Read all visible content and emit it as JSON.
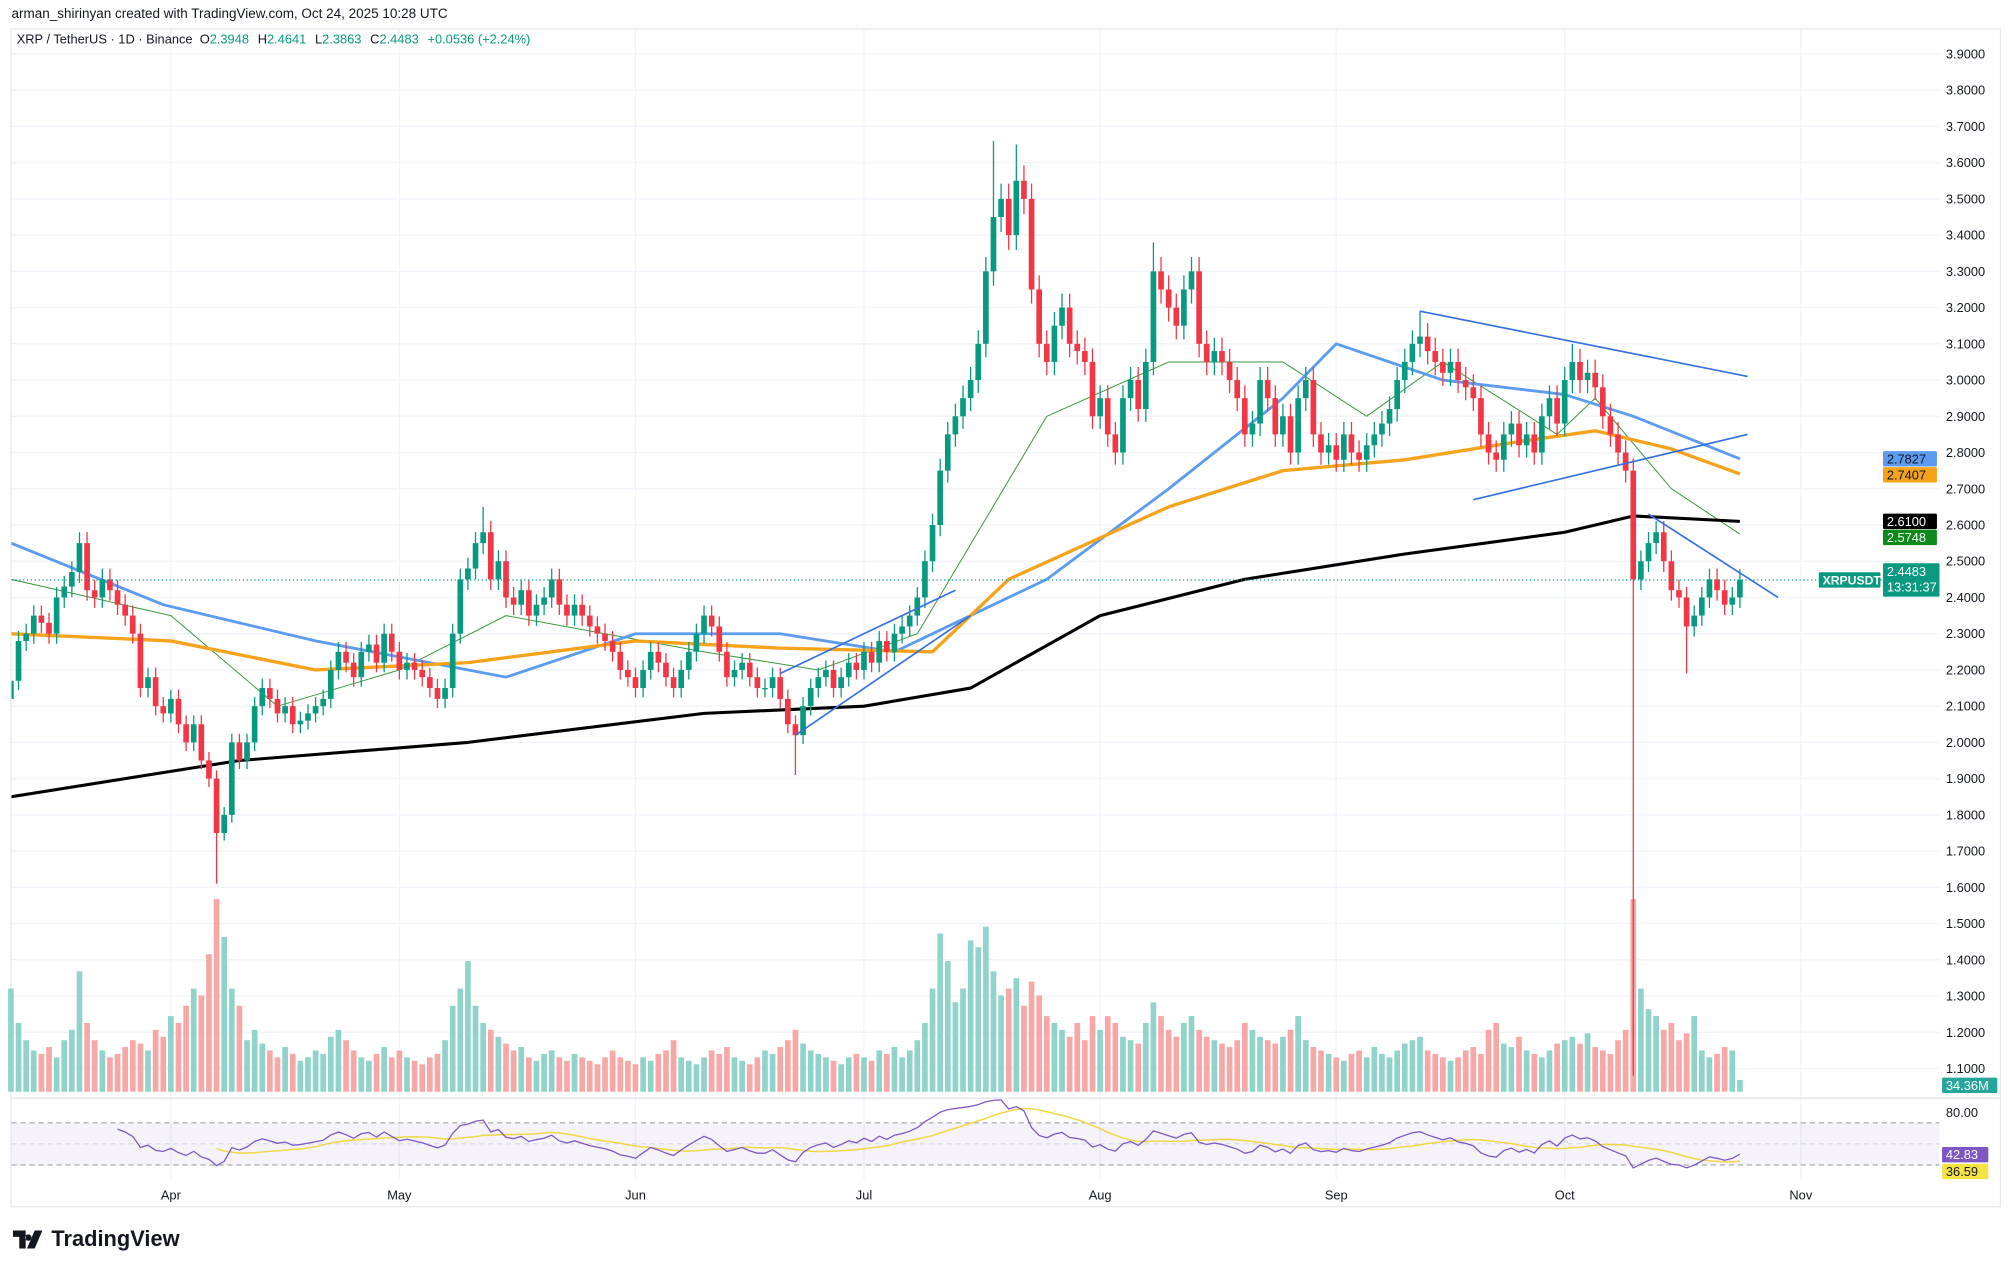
{
  "header": {
    "credit": "arman_shirinyan created with TradingView.com, Oct 24, 2025 10:28 UTC"
  },
  "legend": {
    "symbol": "XRP / TetherUS · 1D · Binance",
    "open_label": "O",
    "open": "2.3948",
    "high_label": "H",
    "high": "2.4641",
    "low_label": "L",
    "low": "2.3863",
    "close_label": "C",
    "close": "2.4483",
    "change": "+0.0536 (+2.24%)"
  },
  "logo": {
    "text": "TradingView"
  },
  "colors": {
    "up": "#089981",
    "down": "#f23645",
    "vol_up": "#8fd3cb",
    "vol_down": "#f7a8a6",
    "ma_green": "#3d9a40",
    "ma_blue": "#5b9bf0",
    "ma_orange": "#f7a21b",
    "ma_black": "#000000",
    "trendline": "#3470e0",
    "rsi": "#7e57c2",
    "rsi_ma": "#f0d84a"
  },
  "chart_data": {
    "type": "candlestick",
    "start_date": "2025-03-11",
    "close": [
      2.17,
      2.28,
      2.3,
      2.35,
      2.33,
      2.3,
      2.4,
      2.43,
      2.47,
      2.55,
      2.42,
      2.4,
      2.45,
      2.42,
      2.38,
      2.35,
      2.3,
      2.15,
      2.18,
      2.1,
      2.08,
      2.12,
      2.05,
      2.0,
      2.05,
      1.95,
      1.9,
      1.75,
      1.8,
      2.0,
      1.95,
      2.0,
      2.1,
      2.15,
      2.12,
      2.08,
      2.1,
      2.05,
      2.06,
      2.08,
      2.1,
      2.12,
      2.2,
      2.25,
      2.22,
      2.18,
      2.25,
      2.27,
      2.22,
      2.3,
      2.25,
      2.2,
      2.22,
      2.2,
      2.18,
      2.15,
      2.12,
      2.15,
      2.3,
      2.45,
      2.48,
      2.55,
      2.58,
      2.45,
      2.5,
      2.4,
      2.38,
      2.42,
      2.35,
      2.38,
      2.4,
      2.45,
      2.38,
      2.35,
      2.38,
      2.35,
      2.32,
      2.3,
      2.28,
      2.25,
      2.2,
      2.18,
      2.15,
      2.2,
      2.25,
      2.22,
      2.18,
      2.15,
      2.2,
      2.25,
      2.3,
      2.35,
      2.32,
      2.25,
      2.18,
      2.2,
      2.22,
      2.18,
      2.15,
      2.15,
      2.18,
      2.12,
      2.05,
      2.02,
      2.1,
      2.15,
      2.18,
      2.2,
      2.15,
      2.18,
      2.22,
      2.2,
      2.25,
      2.22,
      2.28,
      2.25,
      2.3,
      2.32,
      2.35,
      2.4,
      2.5,
      2.6,
      2.75,
      2.85,
      2.9,
      2.95,
      3.0,
      3.1,
      3.3,
      3.45,
      3.5,
      3.4,
      3.55,
      3.5,
      3.25,
      3.1,
      3.05,
      3.15,
      3.2,
      3.1,
      3.08,
      3.05,
      2.9,
      2.95,
      2.85,
      2.8,
      2.95,
      3.0,
      2.92,
      3.05,
      3.3,
      3.25,
      3.2,
      3.15,
      3.25,
      3.3,
      3.1,
      3.05,
      3.08,
      3.05,
      3.0,
      2.95,
      2.85,
      2.88,
      3.0,
      2.95,
      2.85,
      2.9,
      2.8,
      2.95,
      3.0,
      2.85,
      2.8,
      2.82,
      2.78,
      2.85,
      2.8,
      2.78,
      2.82,
      2.85,
      2.88,
      2.92,
      3.0,
      3.05,
      3.1,
      3.12,
      3.08,
      3.05,
      3.02,
      3.05,
      3.0,
      2.98,
      2.95,
      2.85,
      2.8,
      2.78,
      2.85,
      2.88,
      2.82,
      2.85,
      2.8,
      2.9,
      2.95,
      2.88,
      3.0,
      3.05,
      3.0,
      3.02,
      2.98,
      2.9,
      2.85,
      2.8,
      2.75,
      2.45,
      2.5,
      2.55,
      2.58,
      2.5,
      2.42,
      2.4,
      2.32,
      2.35,
      2.4,
      2.45,
      2.42,
      2.38,
      2.4,
      2.4483
    ],
    "high_overrides": {
      "2025-03-20": 2.58,
      "2025-05-12": 2.65,
      "2025-07-18": 3.66,
      "2025-07-21": 3.65,
      "2025-08-08": 3.38,
      "2025-09-12": 3.19,
      "2025-10-02": 3.1
    },
    "low_overrides": {
      "2025-03-11": 1.9,
      "2025-04-07": 1.61,
      "2025-06-22": 1.91,
      "2025-10-10": 1.08,
      "2025-10-17": 2.19
    },
    "volume_millions": [
      300,
      200,
      150,
      120,
      110,
      130,
      100,
      150,
      180,
      350,
      200,
      150,
      120,
      100,
      110,
      130,
      150,
      140,
      120,
      180,
      160,
      220,
      200,
      250,
      300,
      280,
      400,
      560,
      450,
      300,
      250,
      150,
      180,
      140,
      120,
      100,
      130,
      110,
      90,
      100,
      120,
      110,
      160,
      180,
      150,
      120,
      100,
      90,
      110,
      130,
      100,
      120,
      100,
      90,
      80,
      100,
      110,
      150,
      250,
      300,
      380,
      250,
      200,
      180,
      160,
      140,
      120,
      130,
      100,
      90,
      110,
      120,
      100,
      90,
      110,
      100,
      90,
      80,
      100,
      120,
      100,
      90,
      80,
      100,
      90,
      110,
      120,
      150,
      100,
      90,
      80,
      100,
      120,
      110,
      130,
      100,
      90,
      80,
      100,
      120,
      110,
      130,
      150,
      180,
      140,
      120,
      110,
      100,
      90,
      80,
      100,
      110,
      100,
      90,
      120,
      110,
      130,
      100,
      120,
      150,
      200,
      300,
      460,
      380,
      260,
      300,
      440,
      420,
      480,
      350,
      280,
      300,
      330,
      250,
      320,
      280,
      220,
      200,
      180,
      160,
      200,
      150,
      220,
      180,
      220,
      200,
      160,
      150,
      140,
      200,
      260,
      220,
      180,
      160,
      200,
      220,
      180,
      160,
      150,
      140,
      130,
      150,
      200,
      180,
      160,
      150,
      140,
      160,
      180,
      220,
      150,
      130,
      120,
      110,
      100,
      90,
      110,
      120,
      100,
      130,
      110,
      100,
      120,
      140,
      150,
      160,
      120,
      110,
      100,
      90,
      100,
      120,
      130,
      110,
      180,
      200,
      140,
      130,
      160,
      120,
      110,
      100,
      120,
      140,
      150,
      160,
      140,
      170,
      130,
      120,
      110,
      150,
      180,
      560,
      300,
      240,
      220,
      180,
      200,
      150,
      170,
      220,
      120,
      100,
      110,
      130,
      120,
      34.36
    ],
    "moving_averages": [
      {
        "color_key": "ma_green",
        "width": 0.8,
        "points": [
          [
            "2025-03-11",
            2.45
          ],
          [
            "2025-04-01",
            2.35
          ],
          [
            "2025-04-15",
            2.1
          ],
          [
            "2025-05-01",
            2.2
          ],
          [
            "2025-05-15",
            2.35
          ],
          [
            "2025-06-10",
            2.25
          ],
          [
            "2025-06-25",
            2.2
          ],
          [
            "2025-07-08",
            2.3
          ],
          [
            "2025-07-25",
            2.9
          ],
          [
            "2025-08-10",
            3.05
          ],
          [
            "2025-08-25",
            3.05
          ],
          [
            "2025-09-05",
            2.9
          ],
          [
            "2025-09-15",
            3.05
          ],
          [
            "2025-09-30",
            2.85
          ],
          [
            "2025-10-05",
            2.95
          ],
          [
            "2025-10-15",
            2.7
          ],
          [
            "2025-10-24",
            2.5748
          ]
        ]
      },
      {
        "color_key": "ma_blue",
        "width": 2.2,
        "points": [
          [
            "2025-03-11",
            2.55
          ],
          [
            "2025-03-31",
            2.38
          ],
          [
            "2025-04-20",
            2.28
          ],
          [
            "2025-05-15",
            2.18
          ],
          [
            "2025-06-01",
            2.3
          ],
          [
            "2025-06-20",
            2.3
          ],
          [
            "2025-07-05",
            2.25
          ],
          [
            "2025-07-25",
            2.45
          ],
          [
            "2025-08-10",
            2.7
          ],
          [
            "2025-08-25",
            2.95
          ],
          [
            "2025-09-01",
            3.1
          ],
          [
            "2025-09-15",
            3.0
          ],
          [
            "2025-10-01",
            2.96
          ],
          [
            "2025-10-10",
            2.9
          ],
          [
            "2025-10-24",
            2.7827
          ]
        ]
      },
      {
        "color_key": "ma_orange",
        "width": 2.6,
        "points": [
          [
            "2025-03-11",
            2.3
          ],
          [
            "2025-04-01",
            2.28
          ],
          [
            "2025-04-20",
            2.2
          ],
          [
            "2025-05-10",
            2.22
          ],
          [
            "2025-06-01",
            2.28
          ],
          [
            "2025-06-20",
            2.26
          ],
          [
            "2025-07-10",
            2.25
          ],
          [
            "2025-07-20",
            2.45
          ],
          [
            "2025-08-10",
            2.65
          ],
          [
            "2025-08-25",
            2.75
          ],
          [
            "2025-09-10",
            2.78
          ],
          [
            "2025-09-25",
            2.83
          ],
          [
            "2025-10-05",
            2.86
          ],
          [
            "2025-10-15",
            2.81
          ],
          [
            "2025-10-24",
            2.7407
          ]
        ]
      },
      {
        "color_key": "ma_black",
        "width": 2.4,
        "points": [
          [
            "2025-03-11",
            1.85
          ],
          [
            "2025-04-10",
            1.95
          ],
          [
            "2025-05-10",
            2.0
          ],
          [
            "2025-06-10",
            2.08
          ],
          [
            "2025-07-01",
            2.1
          ],
          [
            "2025-07-15",
            2.15
          ],
          [
            "2025-08-01",
            2.35
          ],
          [
            "2025-08-20",
            2.45
          ],
          [
            "2025-09-10",
            2.52
          ],
          [
            "2025-10-01",
            2.58
          ],
          [
            "2025-10-10",
            2.625
          ],
          [
            "2025-10-24",
            2.61
          ]
        ]
      }
    ],
    "trendlines": [
      [
        [
          "2025-06-22",
          2.02
        ],
        [
          "2025-07-15",
          2.35
        ]
      ],
      [
        [
          "2025-06-20",
          2.19
        ],
        [
          "2025-07-13",
          2.42
        ]
      ],
      [
        [
          "2025-09-12",
          3.19
        ],
        [
          "2025-10-25",
          3.01
        ]
      ],
      [
        [
          "2025-09-19",
          2.67
        ],
        [
          "2025-10-25",
          2.85
        ]
      ],
      [
        [
          "2025-10-12",
          2.63
        ],
        [
          "2025-10-29",
          2.4
        ]
      ]
    ],
    "price_ticks": [
      "3.9000",
      "3.8000",
      "3.7000",
      "3.6000",
      "3.5000",
      "3.4000",
      "3.3000",
      "3.2000",
      "3.1000",
      "3.0000",
      "2.9000",
      "2.8000",
      "2.7000",
      "2.6000",
      "2.5000",
      "2.4000",
      "2.3000",
      "2.2000",
      "2.1000",
      "2.0000",
      "1.9000",
      "1.8000",
      "1.7000",
      "1.6000",
      "1.5000",
      "1.4000",
      "1.3000",
      "1.2000",
      "1.1000"
    ],
    "time_ticks": [
      [
        "Apr",
        "2025-04-01"
      ],
      [
        "May",
        "2025-05-01"
      ],
      [
        "Jun",
        "2025-06-01"
      ],
      [
        "Jul",
        "2025-07-01"
      ],
      [
        "Aug",
        "2025-08-01"
      ],
      [
        "Sep",
        "2025-09-01"
      ],
      [
        "Oct",
        "2025-10-01"
      ],
      [
        "Nov",
        "2025-11-01"
      ]
    ],
    "rsi_ticks": [
      "80.00"
    ],
    "rsi_bands": [
      70,
      30
    ],
    "badges": [
      {
        "label": "2.7827",
        "value": 2.7827,
        "bg": "#5b9bf0",
        "fg": "#131722"
      },
      {
        "label": "2.7407",
        "value": 2.7407,
        "bg": "#f7a21b",
        "fg": "#131722"
      },
      {
        "label": "2.6100",
        "value": 2.61,
        "bg": "#000000",
        "fg": "#ffffff"
      },
      {
        "label": "2.5748",
        "value": 2.5748,
        "bg": "#0b8a1a",
        "fg": "#ffffff"
      }
    ],
    "last_price": {
      "symbol": "XRPUSDT",
      "label": "2.4483",
      "value": 2.4483,
      "countdown": "13:31:37",
      "bg": "#089981"
    },
    "volume_badge": "34.36M",
    "rsi_badges": [
      {
        "label": "42.83",
        "bg": "#7e57c2",
        "fg": "#ffffff"
      },
      {
        "label": "36.59",
        "bg": "#f5e342",
        "fg": "#131722"
      }
    ]
  }
}
